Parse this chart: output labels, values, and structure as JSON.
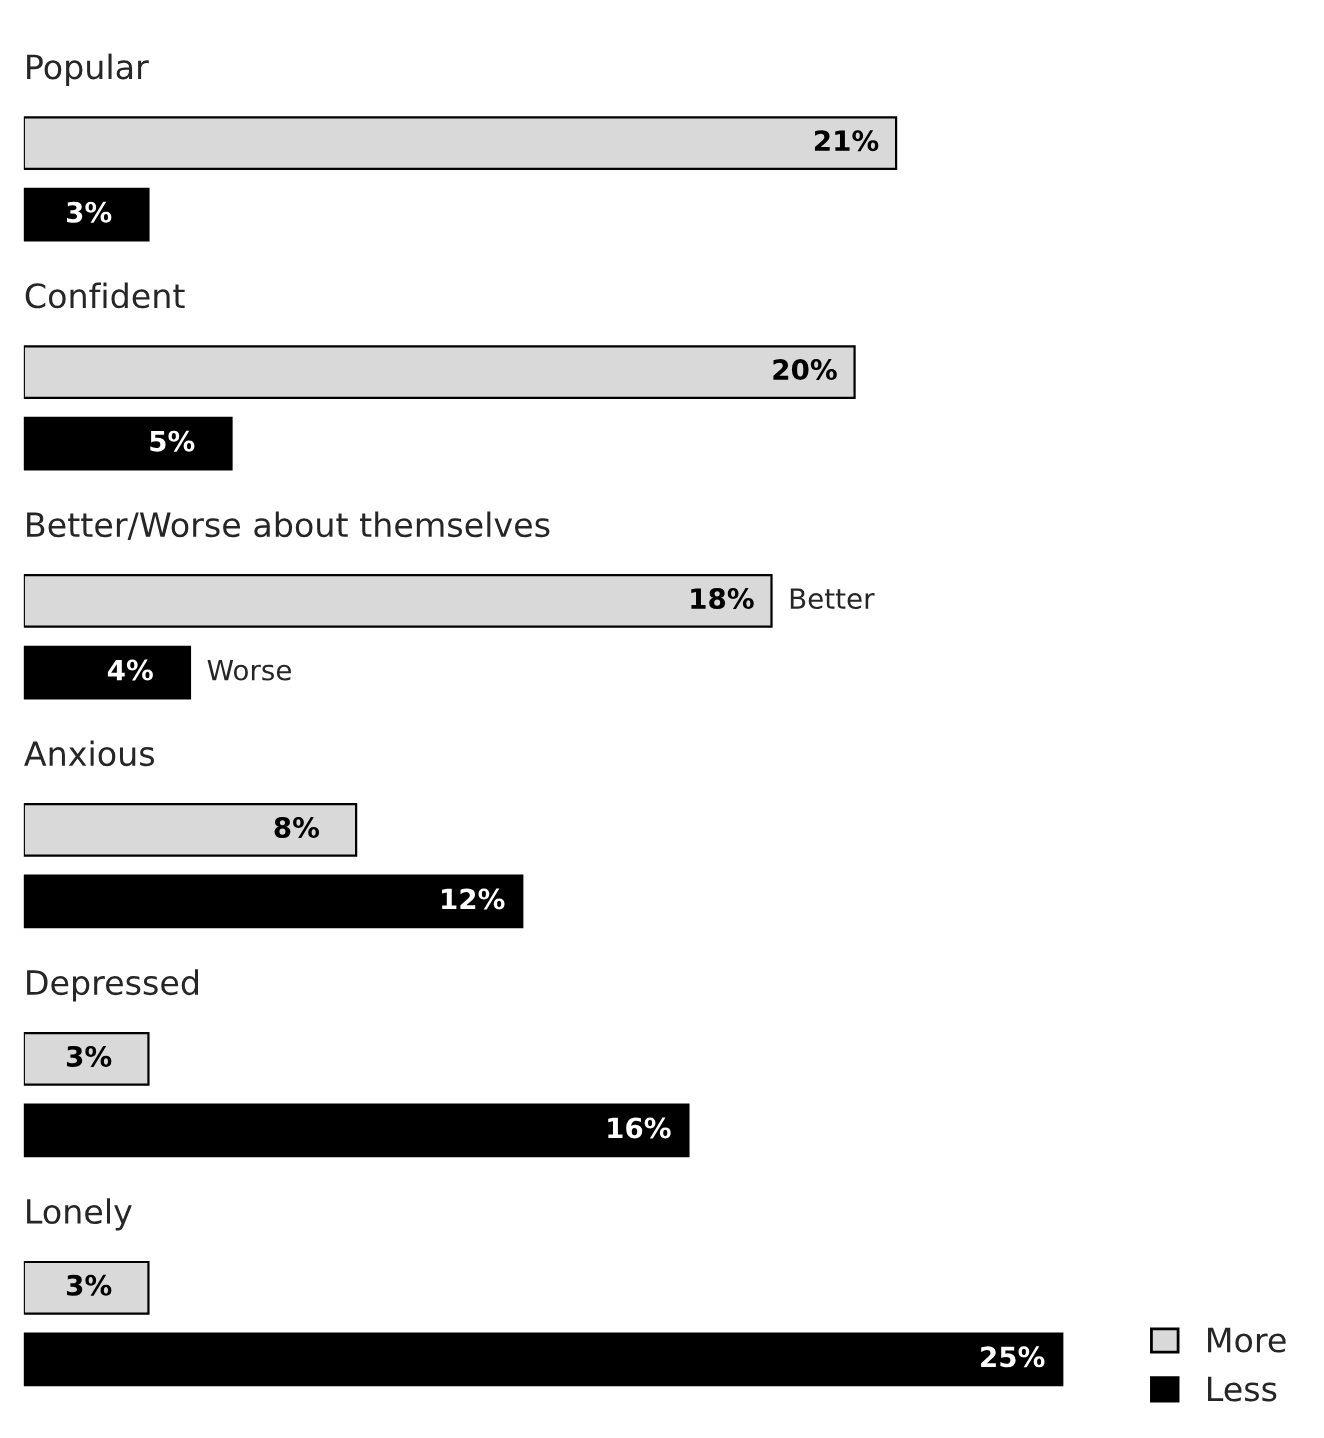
{
  "chart_data": {
    "type": "bar",
    "orientation": "horizontal",
    "categories": [
      "Popular",
      "Confident",
      "Better/Worse about themselves",
      "Anxious",
      "Depressed",
      "Lonely"
    ],
    "series": [
      {
        "name": "More",
        "color": "#d9d9d9",
        "values": [
          21,
          20,
          18,
          8,
          3,
          3
        ],
        "value_labels": [
          "21%",
          "20%",
          "18%",
          "8%",
          "3%",
          "3%"
        ]
      },
      {
        "name": "Less",
        "color": "#000000",
        "values": [
          3,
          5,
          4,
          12,
          16,
          25
        ],
        "value_labels": [
          "3%",
          "5%",
          "4%",
          "12%",
          "16%",
          "25%"
        ]
      }
    ],
    "annotations": [
      {
        "text": "Better",
        "x": 18,
        "y": "Better/Worse about themselves"
      },
      {
        "text": "Worse",
        "x": 4,
        "y": "Better/Worse about themselves"
      }
    ],
    "legend": "bottom right"
  }
}
